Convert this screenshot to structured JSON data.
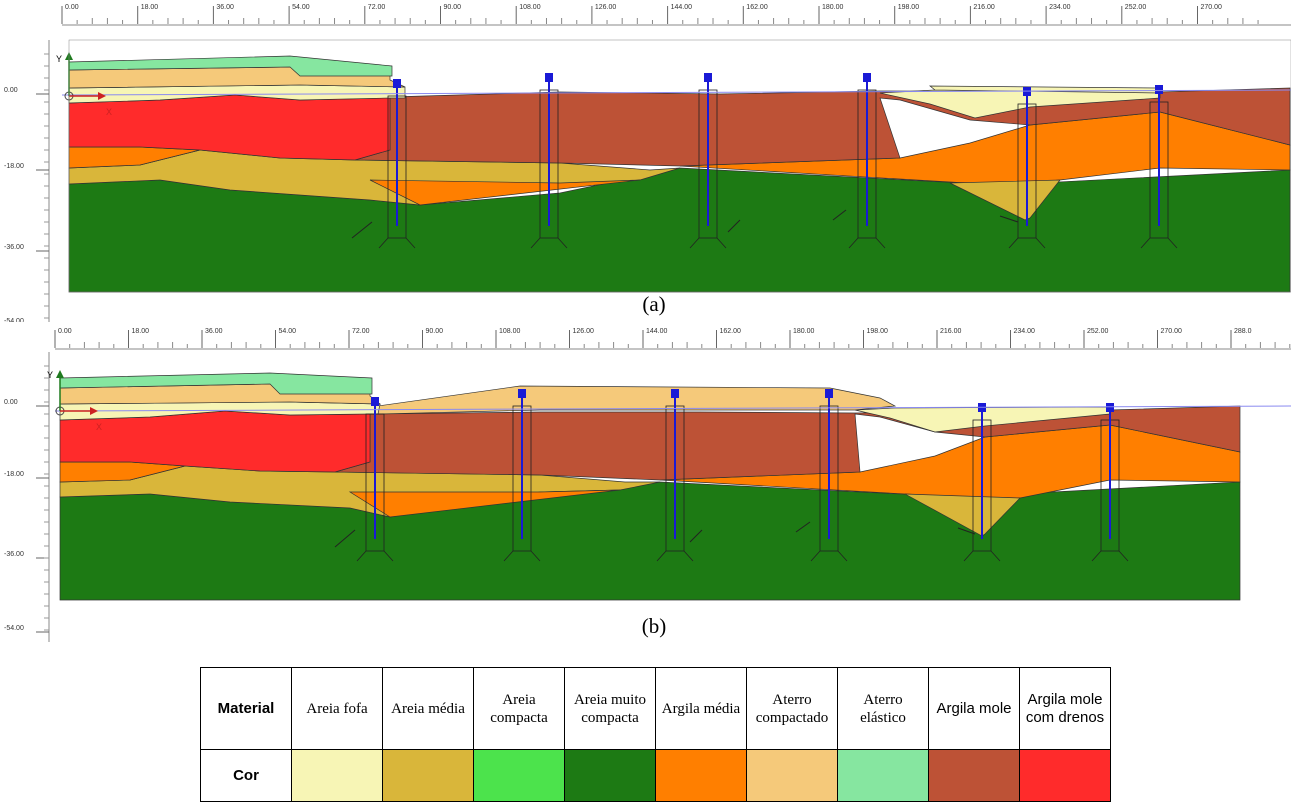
{
  "panel_a": {
    "caption": "(a)",
    "x_ticks": [
      "0.00",
      "18.00",
      "36.00",
      "54.00",
      "72.00",
      "90.00",
      "108.00",
      "126.00",
      "144.00",
      "162.00",
      "180.00",
      "198.00",
      "216.00",
      "234.00",
      "252.00",
      "270.00"
    ],
    "y_ticks": [
      "0.00",
      "-18.00",
      "-36.00",
      "-54.00"
    ],
    "axis_y_label": "Y",
    "axis_x_label": "X"
  },
  "panel_b": {
    "caption": "(b)",
    "x_ticks": [
      "0.00",
      "18.00",
      "36.00",
      "54.00",
      "72.00",
      "90.00",
      "108.00",
      "126.00",
      "144.00",
      "162.00",
      "180.00",
      "198.00",
      "216.00",
      "234.00",
      "252.00",
      "270.00",
      "288.0"
    ],
    "y_ticks": [
      "0.00",
      "-18.00",
      "-36.00",
      "-54.00"
    ],
    "axis_y_label": "Y",
    "axis_x_label": "X"
  },
  "legend": {
    "row_material": "Material",
    "row_color": "Cor",
    "materials": [
      {
        "name": "Areia fofa",
        "color": "#f7f5b5"
      },
      {
        "name": "Areia média",
        "color": "#d9b63a"
      },
      {
        "name": "Areia compacta",
        "color": "#4ce34c"
      },
      {
        "name": "Areia muito compacta",
        "color": "#1d7a14"
      },
      {
        "name": "Argila média",
        "color": "#ff7f00"
      },
      {
        "name": "Aterro compactado",
        "color": "#f5c97a"
      },
      {
        "name": "Aterro elástico",
        "color": "#86e6a0"
      },
      {
        "name": "Argila mole",
        "color": "#bd5236"
      },
      {
        "name": "Argila mole com drenos",
        "color": "#ff2b2b"
      }
    ]
  }
}
